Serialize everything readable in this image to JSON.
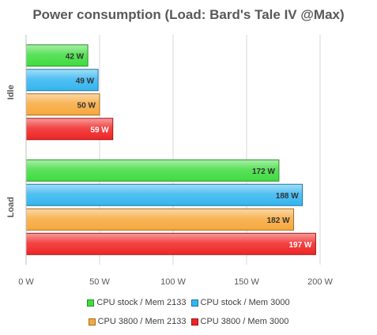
{
  "chart_data": {
    "type": "bar",
    "orientation": "horizontal",
    "title": "Power consumption (Load: Bard's Tale IV @Max)",
    "categories": [
      "Idle",
      "Load"
    ],
    "unit": "W",
    "xlim": [
      0,
      200
    ],
    "xticks": [
      "0 W",
      "50 W",
      "100 W",
      "150 W",
      "200 W"
    ],
    "grid": true,
    "legend_position": "bottom",
    "series": [
      {
        "name": "CPU stock / Mem 2133",
        "color": "#3fdc3f",
        "values": [
          42,
          172
        ],
        "labels": [
          "42 W",
          "172 W"
        ]
      },
      {
        "name": "CPU stock / Mem 3000",
        "color": "#33b5f0",
        "values": [
          49,
          188
        ],
        "labels": [
          "49 W",
          "188 W"
        ]
      },
      {
        "name": "CPU 3800 / Mem 2133",
        "color": "#f7a83c",
        "values": [
          50,
          182
        ],
        "labels": [
          "50 W",
          "182 W"
        ]
      },
      {
        "name": "CPU 3800 / Mem 3000",
        "color": "#f02424",
        "values": [
          59,
          197
        ],
        "labels": [
          "59 W",
          "197 W"
        ]
      }
    ]
  }
}
